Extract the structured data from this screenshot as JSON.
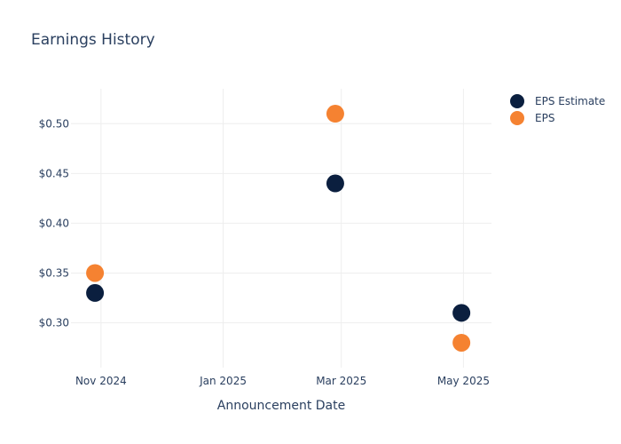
{
  "chart_data": {
    "type": "scatter",
    "title": "Earnings History",
    "xlabel": "Announcement Date",
    "ylabel": "",
    "x_ticks": [
      {
        "date": "2024-11-01",
        "label": "Nov 2024"
      },
      {
        "date": "2025-01-01",
        "label": "Jan 2025"
      },
      {
        "date": "2025-03-01",
        "label": "Mar 2025"
      },
      {
        "date": "2025-05-01",
        "label": "May 2025"
      }
    ],
    "xlim": [
      "2024-10-17",
      "2025-05-15"
    ],
    "y_ticks": [
      0.3,
      0.35,
      0.4,
      0.45,
      0.5
    ],
    "y_tick_format": "$0.00",
    "ylim": [
      0.255,
      0.535
    ],
    "grid": true,
    "legend_position": "top-right",
    "series": [
      {
        "name": "EPS Estimate",
        "color": "#0b1f3f",
        "points": [
          {
            "x": "2024-10-29",
            "y": 0.33
          },
          {
            "x": "2025-02-26",
            "y": 0.44
          },
          {
            "x": "2025-04-30",
            "y": 0.31
          }
        ]
      },
      {
        "name": "EPS",
        "color": "#f58231",
        "points": [
          {
            "x": "2024-10-29",
            "y": 0.35
          },
          {
            "x": "2025-02-26",
            "y": 0.51
          },
          {
            "x": "2025-04-30",
            "y": 0.28
          }
        ]
      }
    ]
  }
}
